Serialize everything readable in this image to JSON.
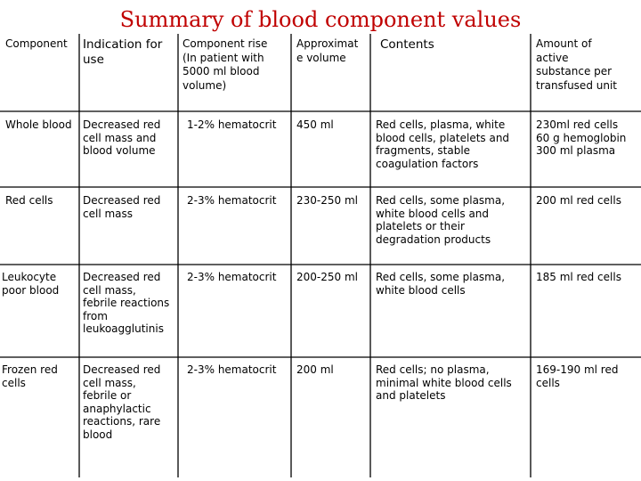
{
  "title": "Summary of blood component values",
  "headers": {
    "component": "Component",
    "indication": "Indication for\n use",
    "rise": "Component rise\n(In patient with\n5000 ml blood\n volume)",
    "volume": "Approximat\ne volume",
    "contents": "Contents",
    "amount": "Amount of\nactive\nsubstance per\n transfused unit"
  },
  "rows": [
    {
      "component": "Whole blood",
      "indication": "Decreased red\ncell mass and\n blood volume",
      "rise": "1-2% hematocrit",
      "volume": "450 ml",
      "contents": "Red cells, plasma, white\nblood cells, platelets and\nfragments, stable\n coagulation factors",
      "amount": "230ml red cells\n60 g hemoglobin\n 300 ml plasma"
    },
    {
      "component": "Red cells",
      "indication": "Decreased red\n cell mass",
      "rise": "2-3% hematocrit",
      "volume": "230-250 ml",
      "contents": "Red cells, some plasma,\nwhite blood cells and\nplatelets or their\n degradation products",
      "amount": " 200 ml red cells"
    },
    {
      "component": "Leukocyte\n poor blood",
      "indication": "Decreased red\ncell mass,\nfebrile reactions\nfrom\n leukoagglutinis",
      "rise": "2-3% hematocrit",
      "volume": "200-250 ml",
      "contents": "Red cells, some plasma,\n white blood cells",
      "amount": " 185 ml red cells"
    },
    {
      "component": "Frozen red\ncells",
      "indication": "Decreased red\ncell mass,\nfebrile or\nanaphylactic\nreactions, rare\n blood",
      "rise": "2-3% hematocrit",
      "volume": "200 ml",
      "contents": "Red cells; no plasma,\nminimal white blood cells\n and platelets",
      "amount": "169-190 ml red\n cells"
    }
  ]
}
